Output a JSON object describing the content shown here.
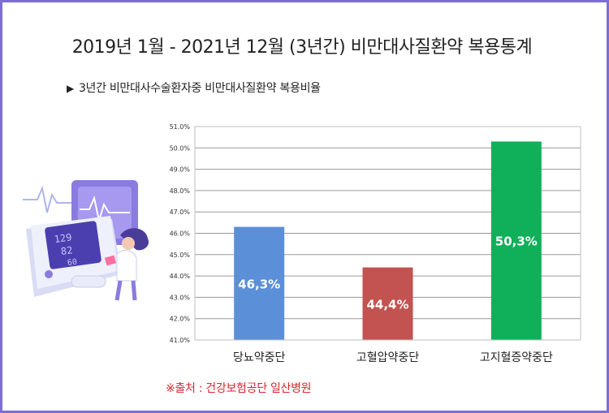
{
  "title": "2019년 1월 - 2021년 12월 (3년간) 비만대사질환약 복용통계",
  "subtitle": "3년간 비만대사수술환자중 비만대사질환약 복용비율",
  "source": "※출처 : 건강보험공단 일산병원",
  "colors": {
    "frame": "#7b6fd6",
    "bar1": "#5b8fd8",
    "bar2": "#c25350",
    "bar3": "#10b05a"
  },
  "chart_data": {
    "type": "bar",
    "categories": [
      "당뇨약중단",
      "고혈압약중단",
      "고지혈증약중단"
    ],
    "values": [
      46.3,
      44.4,
      50.3
    ],
    "value_labels": [
      "46,3%",
      "44,4%",
      "50,3%"
    ],
    "bar_colors": [
      "#5b8fd8",
      "#c25350",
      "#10b05a"
    ],
    "ylim": [
      41.0,
      51.0
    ],
    "yticks": [
      "41.0%",
      "42.0%",
      "43.0%",
      "44.0%",
      "45.0%",
      "46.0%",
      "47.0%",
      "48.0%",
      "49.0%",
      "50.0%",
      "51.0%"
    ],
    "grid": true,
    "legend": "none"
  }
}
